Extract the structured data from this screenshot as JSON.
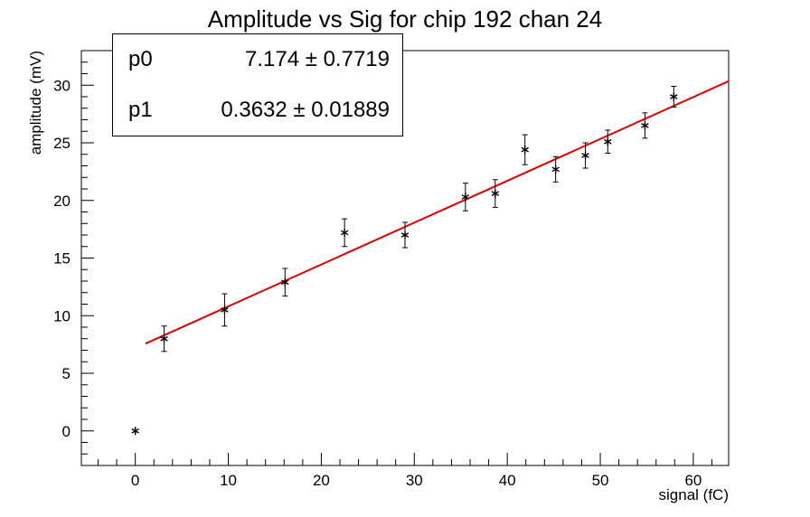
{
  "chart_data": {
    "type": "scatter",
    "title": "Amplitude vs Sig for chip 192 chan 24",
    "xlabel": "signal (fC)",
    "ylabel": "amplitude (mV)",
    "xlim": [
      -5.8,
      63.8
    ],
    "ylim": [
      -3.0,
      33.0
    ],
    "x_ticks": [
      0,
      10,
      20,
      30,
      40,
      50,
      60
    ],
    "y_ticks": [
      0,
      5,
      10,
      15,
      20,
      25,
      30
    ],
    "grid": false,
    "series": [
      {
        "marker": "asterisk",
        "color": "#000000",
        "points": [
          {
            "x": 0.0,
            "y": 0.0,
            "err": 0.0
          },
          {
            "x": 3.1,
            "y": 8.0,
            "err": 1.1
          },
          {
            "x": 9.6,
            "y": 10.5,
            "err": 1.4
          },
          {
            "x": 16.1,
            "y": 12.9,
            "err": 1.2
          },
          {
            "x": 22.5,
            "y": 17.2,
            "err": 1.2
          },
          {
            "x": 29.0,
            "y": 17.0,
            "err": 1.1
          },
          {
            "x": 35.5,
            "y": 20.3,
            "err": 1.2
          },
          {
            "x": 38.7,
            "y": 20.6,
            "err": 1.2
          },
          {
            "x": 41.9,
            "y": 24.4,
            "err": 1.3
          },
          {
            "x": 45.2,
            "y": 22.7,
            "err": 1.1
          },
          {
            "x": 48.4,
            "y": 23.9,
            "err": 1.1
          },
          {
            "x": 50.8,
            "y": 25.1,
            "err": 1.0
          },
          {
            "x": 54.8,
            "y": 26.5,
            "err": 1.1
          },
          {
            "x": 57.9,
            "y": 29.0,
            "err": 0.9
          }
        ]
      }
    ],
    "fit": {
      "color": "#e00000",
      "x_range": [
        1.1,
        63.8
      ],
      "p0": 7.174,
      "p1": 0.3632
    },
    "stats": [
      {
        "name": "p0",
        "value": "7.174 ± 0.7719"
      },
      {
        "name": "p1",
        "value": "0.3632 ± 0.01889"
      }
    ]
  }
}
